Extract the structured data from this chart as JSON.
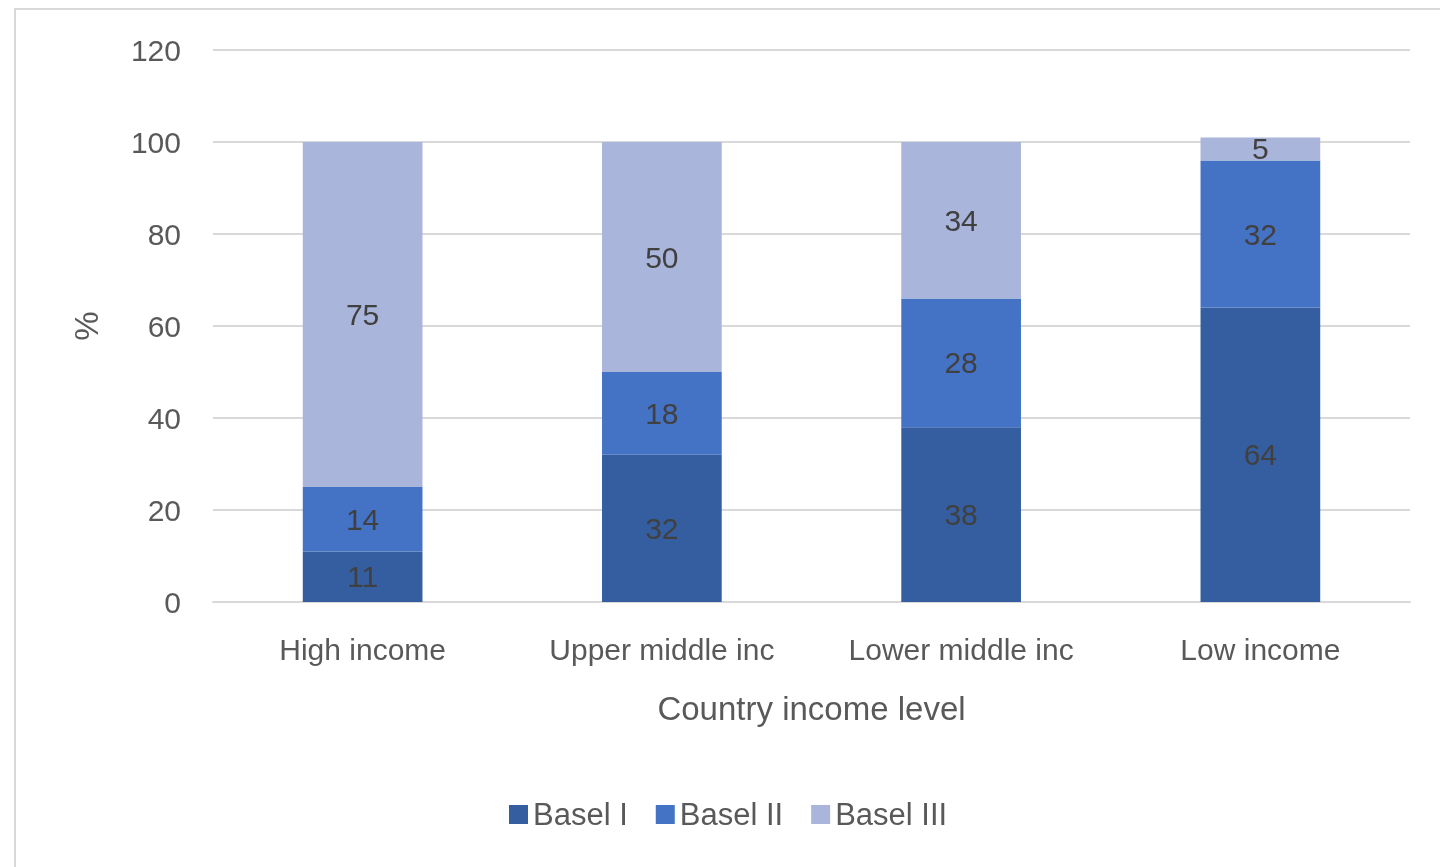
{
  "chart_data": {
    "type": "bar",
    "stacked": true,
    "xlabel": "Country income level",
    "ylabel": "%",
    "categories": [
      "High income",
      "Upper middle inc",
      "Lower middle inc",
      "Low income"
    ],
    "series": [
      {
        "name": "Basel I",
        "color": "#355ea0",
        "values": [
          11,
          32,
          38,
          64
        ]
      },
      {
        "name": "Basel II",
        "color": "#4472c4",
        "values": [
          14,
          18,
          28,
          32
        ]
      },
      {
        "name": "Basel III",
        "color": "#a9b5da",
        "values": [
          75,
          50,
          34,
          5
        ]
      }
    ],
    "ylim": [
      0,
      120
    ],
    "yticks": [
      0,
      20,
      40,
      60,
      80,
      100,
      120
    ],
    "grid": "y",
    "legend": "bottom",
    "data_labels": true
  }
}
